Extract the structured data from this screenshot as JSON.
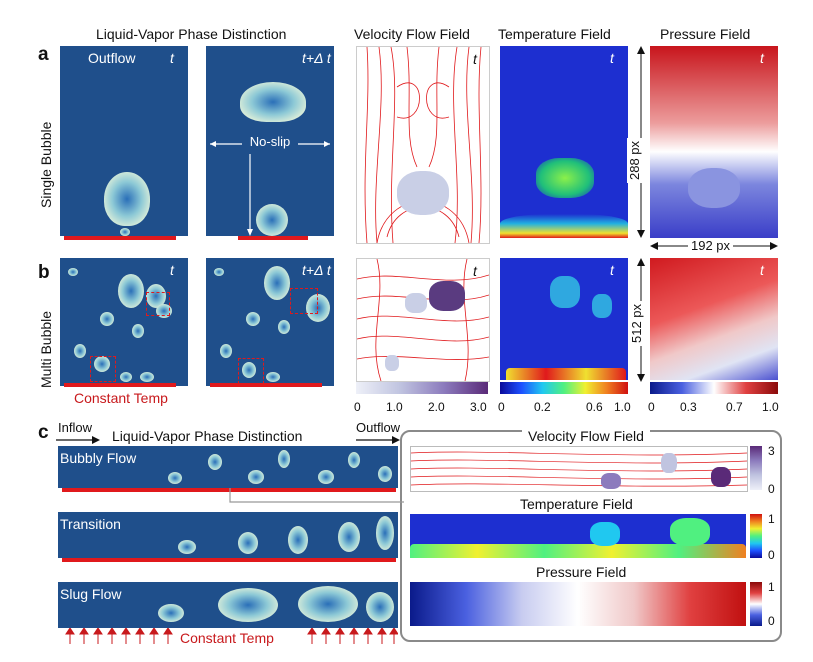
{
  "titles": {
    "lv": "Liquid-Vapor Phase Distinction",
    "vel": "Velocity Flow Field",
    "temp": "Temperature Field",
    "pres": "Pressure Field",
    "lv_c": "Liquid-Vapor Phase Distinction",
    "vel_c": "Velocity Flow Field",
    "temp_c": "Temperature Field",
    "pres_c": "Pressure Field"
  },
  "letters": {
    "a": "a",
    "b": "b",
    "c": "c"
  },
  "rows": {
    "single": "Single Bubble",
    "multi": "Multi Bubble"
  },
  "labels": {
    "outflow": "Outflow",
    "t": "t",
    "tdt": "t+Δ t",
    "noslip": "No-slip",
    "constant_temp": "Constant Temp",
    "inflow": "Inflow",
    "outflow_c": "Outflow",
    "dim_288": "288 px",
    "dim_192": "192 px",
    "dim_512": "512 px",
    "bubbly": "Bubbly Flow",
    "transition": "Transition",
    "slug": "Slug Flow"
  },
  "colorbars": {
    "vel": [
      "0",
      "1.0",
      "2.0",
      "3.0"
    ],
    "temp": [
      "0",
      "0.2",
      "0.6",
      "1.0"
    ],
    "pres": [
      "0",
      "0.3",
      "0.7",
      "1.0"
    ],
    "vel_c": [
      "3",
      "0"
    ],
    "temp_c": [
      "1",
      "0"
    ],
    "pres_c": [
      "1",
      "0"
    ]
  }
}
